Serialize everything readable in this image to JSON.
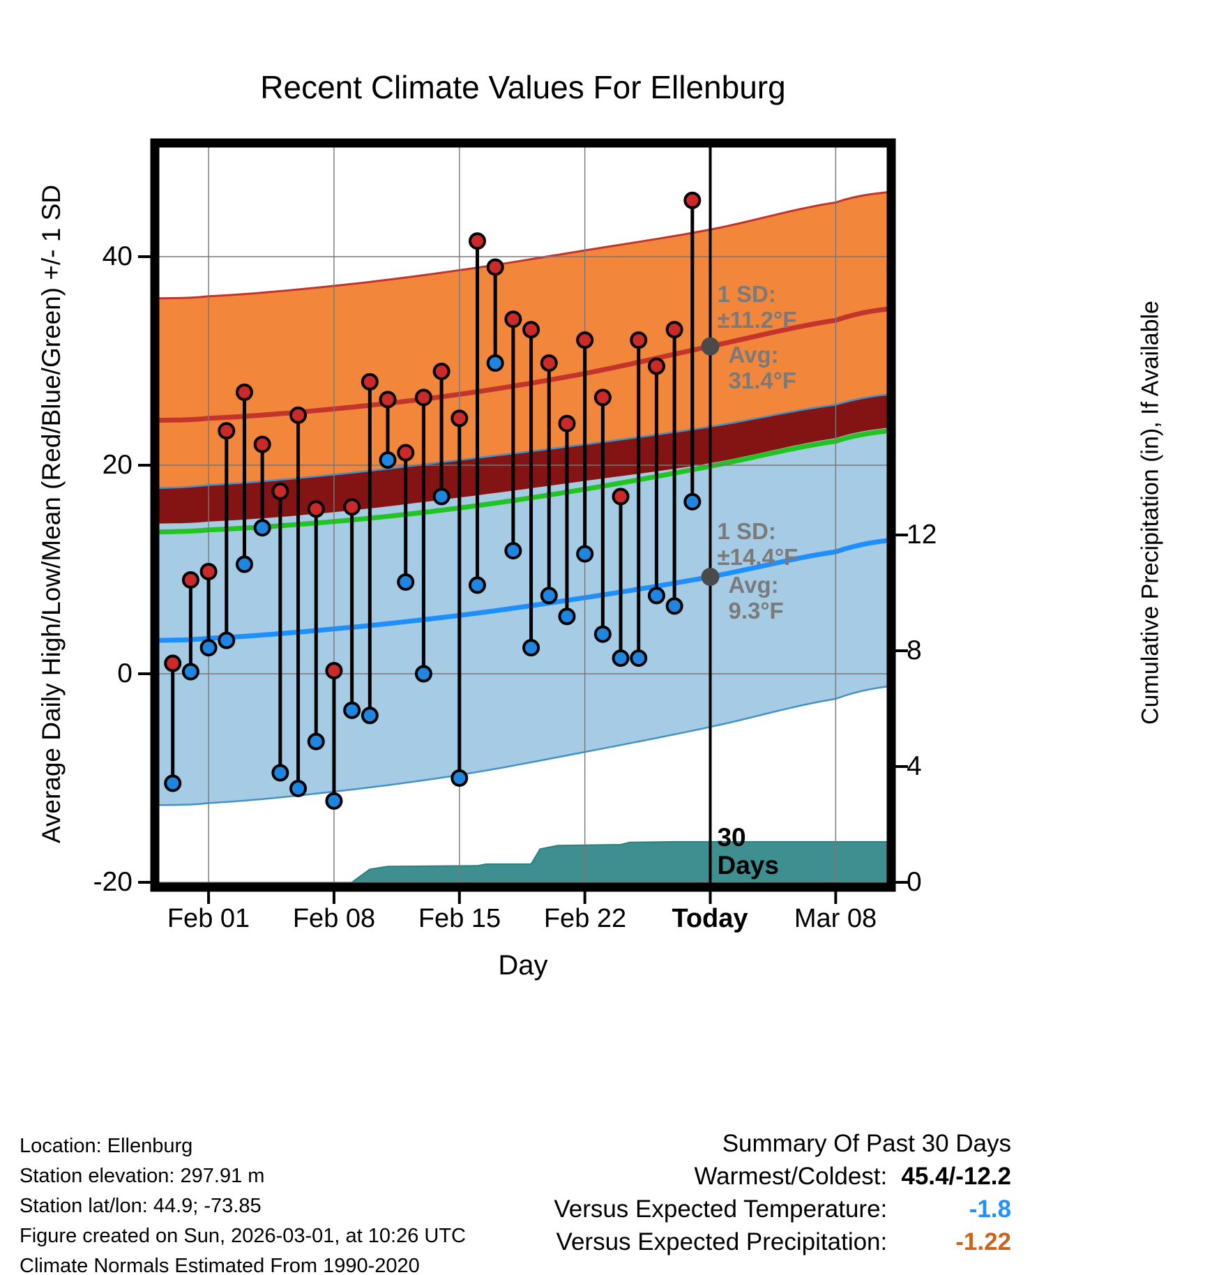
{
  "title": "Recent Climate Values For Ellenburg",
  "axes": {
    "left_label": "Average Daily High/Low/Mean (Red/Blue/Green) +/- 1 SD",
    "right_label": "Cumulative Precipitation (in), If Available",
    "x_label": "Day",
    "left_ticks": [
      "40",
      "20",
      "0",
      "-20"
    ],
    "right_ticks": [
      "12",
      "8",
      "4",
      "0"
    ],
    "x_ticks": [
      "Feb 01",
      "Feb 08",
      "Feb 15",
      "Feb 22",
      "Today",
      "Mar 08"
    ]
  },
  "annotations": {
    "high_sd_label": "1 SD:",
    "high_sd_value": "±11.2°F",
    "high_avg_label": "Avg:",
    "high_avg_value": "31.4°F",
    "low_sd_label": "1 SD:",
    "low_sd_value": "±14.4°F",
    "low_avg_label": "Avg:",
    "low_avg_value": "9.3°F",
    "period_line1": "30",
    "period_line2": "Days"
  },
  "colors": {
    "high_band": "#F2873C",
    "high_line": "#C3342B",
    "overlap_band": "#841414",
    "low_band": "#A6CBE4",
    "low_line": "#1E8FFF",
    "low_edge": "#4292C9",
    "mean_line": "#21C421",
    "precip_fill": "#3E8F8F",
    "precip_edge": "#2E7F7F",
    "high_dot": "#CC2A2A",
    "low_dot": "#1E86E0",
    "annotation_gray": "#7A7A7A",
    "today_marker": "#4A4A4A",
    "grid": "#777777"
  },
  "chart_data": {
    "type": "line",
    "title": "Recent Climate Values For Ellenburg",
    "xlabel": "Day",
    "ylabel_left": "Average Daily High/Low/Mean (Red/Blue/Green) +/- 1 SD",
    "ylabel_right": "Cumulative Precipitation (in), If Available",
    "ylim_left": [
      -20,
      50
    ],
    "ylim_right_in": [
      0,
      14
    ],
    "grid": true,
    "day_zero_date": "Jan 29",
    "x_tick_days": [
      3,
      10,
      17,
      24,
      31,
      38
    ],
    "x_tick_labels": [
      "Feb 01",
      "Feb 08",
      "Feb 15",
      "Feb 22",
      "Today",
      "Mar 08"
    ],
    "today_day": 31,
    "left_tick_values": [
      40,
      20,
      0,
      -20
    ],
    "right_tick_values": [
      12,
      8,
      4,
      0
    ],
    "bands": {
      "control_days": [
        0,
        3,
        10,
        17,
        24,
        31,
        38,
        41
      ],
      "high_plus_sd": [
        36.0,
        36.2,
        37.2,
        38.7,
        40.6,
        42.6,
        45.2,
        46.2
      ],
      "high_avg": [
        24.3,
        24.5,
        25.4,
        26.8,
        28.8,
        31.4,
        33.9,
        35.0
      ],
      "high_minus_sd": [
        14.4,
        14.6,
        15.5,
        16.9,
        18.5,
        20.2,
        22.6,
        23.6
      ],
      "low_plus_sd": [
        17.8,
        18.1,
        19.1,
        20.5,
        22.0,
        23.7,
        25.8,
        26.8
      ],
      "low_avg": [
        3.2,
        3.4,
        4.3,
        5.6,
        7.3,
        9.3,
        11.7,
        12.8
      ],
      "low_minus_sd": [
        -12.6,
        -12.4,
        -11.3,
        -9.7,
        -7.5,
        -5.1,
        -2.4,
        -1.2
      ],
      "mean_avg": [
        13.6,
        13.8,
        14.6,
        15.9,
        17.7,
        19.9,
        22.3,
        23.3
      ]
    },
    "daily": {
      "days": [
        1,
        2,
        3,
        4,
        5,
        6,
        7,
        8,
        9,
        10,
        11,
        12,
        13,
        14,
        15,
        16,
        17,
        18,
        19,
        20,
        21,
        22,
        23,
        24,
        25,
        26,
        27,
        28,
        29,
        30
      ],
      "high": [
        1.0,
        9.0,
        9.8,
        23.3,
        27.0,
        22.0,
        17.5,
        24.8,
        15.8,
        0.3,
        16.0,
        28.0,
        26.3,
        21.2,
        26.5,
        29.0,
        24.5,
        41.5,
        39.0,
        34.0,
        33.0,
        29.8,
        24.0,
        32.0,
        26.5,
        17.0,
        32.0,
        29.5,
        33.0,
        45.4
      ],
      "low": [
        -10.5,
        0.2,
        2.5,
        3.2,
        10.5,
        14.0,
        -9.5,
        -11.0,
        -6.5,
        -12.2,
        -3.5,
        -4.0,
        20.5,
        8.8,
        0.0,
        17.0,
        -10.0,
        8.5,
        29.8,
        11.8,
        2.5,
        7.5,
        5.5,
        11.5,
        3.8,
        1.5,
        1.5,
        7.5,
        6.5,
        16.5
      ]
    },
    "precip": {
      "days": [
        11,
        12,
        13,
        18,
        18.5,
        21,
        21.5,
        22.5,
        26,
        26.5,
        29,
        31,
        41.2
      ],
      "cumulative_in": [
        0,
        0.45,
        0.55,
        0.57,
        0.63,
        0.63,
        1.15,
        1.27,
        1.3,
        1.38,
        1.4,
        1.4,
        1.4
      ]
    },
    "today_high_avg": 31.4,
    "today_high_sd": 11.2,
    "today_low_avg": 9.3,
    "today_low_sd": 14.4
  },
  "footer": {
    "lines": [
      "Location: Ellenburg",
      "Station elevation: 297.91 m",
      "Station lat/lon: 44.9; -73.85",
      "Figure created on Sun, 2026-03-01, at 10:26 UTC",
      "Climate Normals Estimated From 1990-2020"
    ]
  },
  "summary": {
    "title": "Summary Of Past 30 Days",
    "rows": [
      {
        "label": "Warmest/Coldest:",
        "value": "45.4/-12.2",
        "color": "#000000"
      },
      {
        "label": "Versus Expected Temperature:",
        "value": "-1.8",
        "color": "#1E90FF"
      },
      {
        "label": "Versus Expected Precipitation:",
        "value": "-1.22",
        "color": "#C8641E"
      }
    ]
  }
}
